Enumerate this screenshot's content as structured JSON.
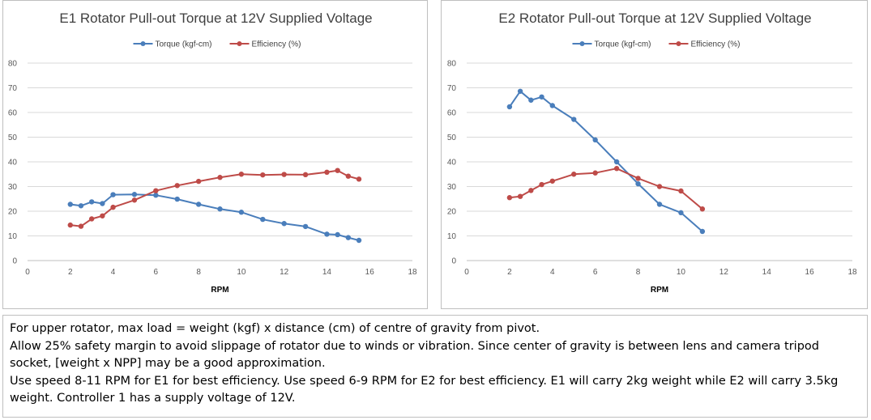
{
  "chart_data": [
    {
      "type": "line",
      "title": "E1 Rotator Pull-out Torque at 12V Supplied Voltage",
      "xlabel": "RPM",
      "ylabel": "",
      "xlim": [
        0,
        18
      ],
      "ylim": [
        0,
        80
      ],
      "x_ticks": [
        "0",
        "2",
        "4",
        "6",
        "8",
        "10",
        "12",
        "14",
        "16",
        "18"
      ],
      "y_ticks": [
        "0",
        "10",
        "20",
        "30",
        "40",
        "50",
        "60",
        "70",
        "80"
      ],
      "grid": true,
      "legend": "top",
      "series": [
        {
          "name": "Torque (kgf-cm)",
          "color": "#4a7ebb",
          "x": [
            2,
            2.5,
            3,
            3.5,
            4,
            5,
            6,
            7,
            8,
            9,
            10,
            11,
            12,
            13,
            14,
            14.5,
            15,
            15.5
          ],
          "y": [
            22.8,
            22.2,
            23.8,
            23.1,
            26.7,
            26.8,
            26.5,
            24.9,
            22.8,
            20.9,
            19.6,
            16.7,
            15.0,
            13.8,
            10.7,
            10.5,
            9.3,
            8.2
          ]
        },
        {
          "name": "Efficiency (%)",
          "color": "#be4b48",
          "x": [
            2,
            2.5,
            3,
            3.5,
            4,
            5,
            6,
            7,
            8,
            9,
            10,
            11,
            12,
            13,
            14,
            14.5,
            15,
            15.5
          ],
          "y": [
            14.4,
            13.9,
            16.9,
            18.1,
            21.6,
            24.5,
            28.3,
            30.4,
            32.1,
            33.7,
            35.0,
            34.7,
            34.9,
            34.8,
            35.8,
            36.5,
            34.2,
            33.0
          ]
        }
      ]
    },
    {
      "type": "line",
      "title": "E2 Rotator Pull-out Torque at 12V Supplied Voltage",
      "xlabel": "RPM",
      "ylabel": "",
      "xlim": [
        0,
        18
      ],
      "ylim": [
        0,
        80
      ],
      "x_ticks": [
        "0",
        "2",
        "4",
        "6",
        "8",
        "10",
        "12",
        "14",
        "16",
        "18"
      ],
      "y_ticks": [
        "0",
        "10",
        "20",
        "30",
        "40",
        "50",
        "60",
        "70",
        "80"
      ],
      "grid": true,
      "legend": "top",
      "series": [
        {
          "name": "Torque (kgf-cm)",
          "color": "#4a7ebb",
          "x": [
            2,
            2.5,
            3,
            3.5,
            4,
            5,
            6,
            7,
            8,
            9,
            10,
            11
          ],
          "y": [
            62.3,
            68.6,
            65.0,
            66.3,
            62.8,
            57.2,
            48.9,
            40.0,
            31.1,
            22.8,
            19.4,
            11.8
          ]
        },
        {
          "name": "Efficiency (%)",
          "color": "#be4b48",
          "x": [
            2,
            2.5,
            3,
            3.5,
            4,
            5,
            6,
            7,
            8,
            9,
            10,
            11
          ],
          "y": [
            25.5,
            26.0,
            28.4,
            30.8,
            32.2,
            35.0,
            35.5,
            37.3,
            33.3,
            30.0,
            28.2,
            20.9
          ]
        }
      ]
    }
  ],
  "notes": {
    "line1": "For upper rotator, max load = weight (kgf) x distance (cm) of centre of gravity from pivot.",
    "line2": "Allow 25% safety margin to avoid slippage of rotator due to winds or vibration. Since center of gravity is between lens and camera tripod socket, [weight x NPP] may be a good approximation.",
    "line3": "Use speed 8-11 RPM for E1 for best efficiency. Use speed 6-9 RPM for E2 for best efficiency. E1 will carry 2kg weight while E2 will carry 3.5kg weight. Controller 1 has a supply voltage of 12V."
  }
}
